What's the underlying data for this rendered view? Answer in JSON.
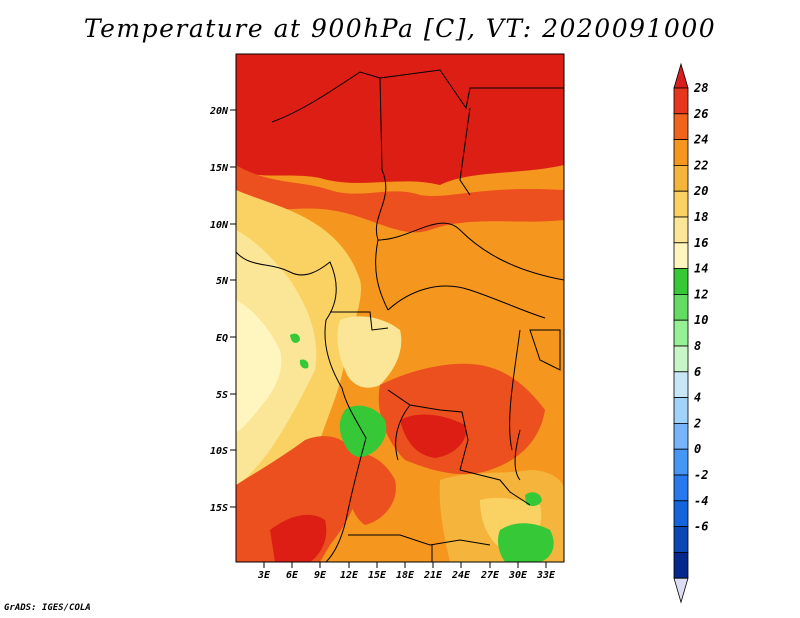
{
  "title": "Temperature at 900hPa [C], VT: 2020091000",
  "credit": "GrADS: IGES/COLA",
  "map": {
    "lat_labels": [
      "20N",
      "15N",
      "10N",
      "5N",
      "EQ",
      "5S",
      "10S",
      "15S"
    ],
    "lon_labels": [
      "3E",
      "6E",
      "9E",
      "12E",
      "15E",
      "18E",
      "21E",
      "24E",
      "27E",
      "30E",
      "33E"
    ]
  },
  "colorbar": {
    "labels": [
      "28",
      "26",
      "24",
      "22",
      "20",
      "18",
      "16",
      "14",
      "12",
      "10",
      "8",
      "6",
      "4",
      "2",
      "0",
      "-2",
      "-4",
      "-6"
    ],
    "colors": [
      "#d81e1e",
      "#e6371e",
      "#f0641e",
      "#f5961e",
      "#f5b43c",
      "#fad264",
      "#fae696",
      "#fff5be",
      "#37c837",
      "#64dc64",
      "#96f096",
      "#c8f5c8",
      "#c8e6f5",
      "#a0d2fa",
      "#78b4fa",
      "#4696f5",
      "#2878f0",
      "#1464dc",
      "#0a46b4",
      "#06288c",
      "#dcdcf5"
    ]
  }
}
